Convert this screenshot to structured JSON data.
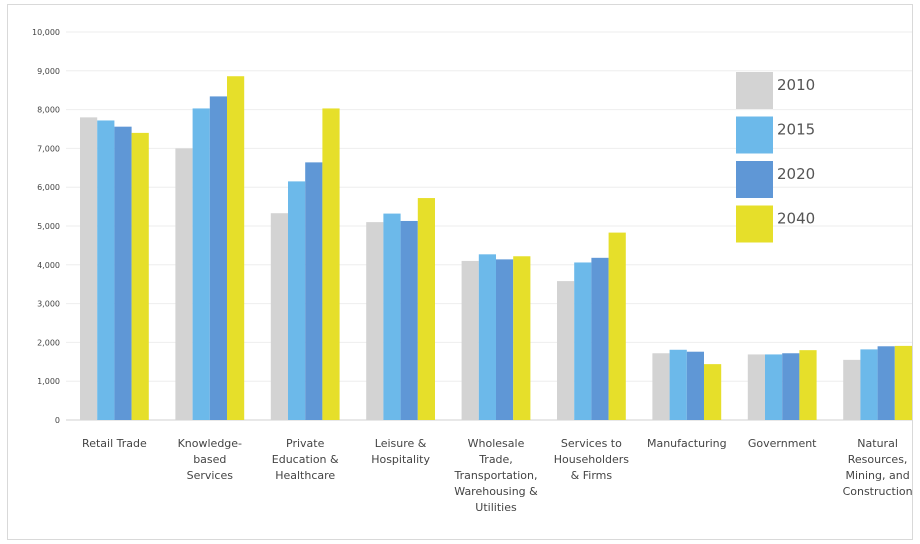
{
  "chart_data": {
    "type": "bar",
    "title": "",
    "xlabel": "",
    "ylabel": "",
    "ylim": [
      0,
      10000
    ],
    "yticks": [
      0,
      1000,
      2000,
      3000,
      4000,
      5000,
      6000,
      7000,
      8000,
      9000,
      10000
    ],
    "ytick_labels": [
      "0",
      "1,000",
      "2,000",
      "3,000",
      "4,000",
      "5,000",
      "6,000",
      "7,000",
      "8,000",
      "9,000",
      "10,000"
    ],
    "grid": true,
    "legend_position": "top-right",
    "categories": [
      "Retail Trade",
      "Knowledge-based Services",
      "Private Education & Healthcare",
      "Leisure & Hospitality",
      "Wholesale Trade, Transportation, Warehousing & Utilities",
      "Services to Householders & Firms",
      "Manufacturing",
      "Government",
      "Natural Resources, Mining, and Construction"
    ],
    "category_lines": [
      [
        "Retail Trade"
      ],
      [
        "Knowledge-",
        "based",
        "Services"
      ],
      [
        "Private",
        "Education &",
        "Healthcare"
      ],
      [
        "Leisure &",
        "Hospitality"
      ],
      [
        "Wholesale",
        "Trade,",
        "Transportation,",
        "Warehousing &",
        "Utilities"
      ],
      [
        "Services to",
        "Householders",
        "& Firms"
      ],
      [
        "Manufacturing"
      ],
      [
        "Government"
      ],
      [
        "Natural",
        "Resources,",
        "Mining, and",
        "Construction"
      ]
    ],
    "series": [
      {
        "name": "2010",
        "color": "#d3d3d3",
        "values": [
          7800,
          7000,
          5330,
          5100,
          4100,
          3580,
          1720,
          1690,
          1550
        ]
      },
      {
        "name": "2015",
        "color": "#6cb9ea",
        "values": [
          7720,
          8030,
          6150,
          5320,
          4270,
          4060,
          1810,
          1690,
          1820
        ]
      },
      {
        "name": "2020",
        "color": "#5f97d6",
        "values": [
          7560,
          8340,
          6640,
          5130,
          4140,
          4180,
          1760,
          1720,
          1900
        ]
      },
      {
        "name": "2040",
        "color": "#e6df2a",
        "values": [
          7400,
          8860,
          8030,
          5720,
          4220,
          4830,
          1440,
          1800,
          1910
        ]
      }
    ]
  }
}
